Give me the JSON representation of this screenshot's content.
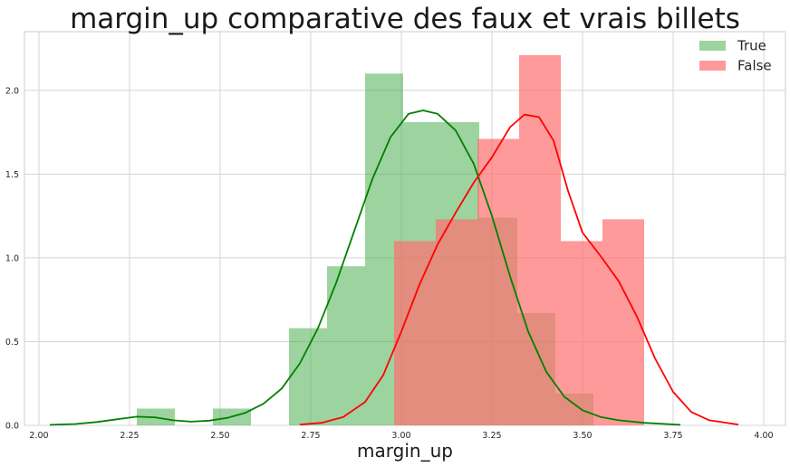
{
  "chart_data": {
    "type": "histogram",
    "title": "margin_up comparative des faux et vrais billets",
    "xlabel": "margin_up",
    "ylabel": "",
    "xlim": [
      1.96,
      4.06
    ],
    "ylim": [
      0,
      2.35
    ],
    "xticks": [
      "2.00",
      "2.25",
      "2.50",
      "2.75",
      "3.00",
      "3.25",
      "3.50",
      "3.75",
      "4.00"
    ],
    "yticks": [
      "0.0",
      "0.5",
      "1.0",
      "1.5",
      "2.0"
    ],
    "grid": true,
    "legend_position": "top-right",
    "series": [
      {
        "name": "True",
        "bar_color": "#4caf50",
        "bar_opacity": 0.55,
        "line_color": "#008000",
        "bins": [
          {
            "x0": 2.27,
            "x1": 2.375,
            "value": 0.1
          },
          {
            "x0": 2.48,
            "x1": 2.585,
            "value": 0.1
          },
          {
            "x0": 2.69,
            "x1": 2.795,
            "value": 0.58
          },
          {
            "x0": 2.795,
            "x1": 2.9,
            "value": 0.95
          },
          {
            "x0": 2.9,
            "x1": 3.005,
            "value": 2.1
          },
          {
            "x0": 3.005,
            "x1": 3.11,
            "value": 1.81
          },
          {
            "x0": 3.11,
            "x1": 3.215,
            "value": 1.81
          },
          {
            "x0": 3.215,
            "x1": 3.32,
            "value": 1.24
          },
          {
            "x0": 3.32,
            "x1": 3.425,
            "value": 0.67
          },
          {
            "x0": 3.425,
            "x1": 3.53,
            "value": 0.19
          }
        ],
        "kde": [
          [
            2.03,
            0.003
          ],
          [
            2.1,
            0.008
          ],
          [
            2.16,
            0.02
          ],
          [
            2.22,
            0.038
          ],
          [
            2.27,
            0.052
          ],
          [
            2.32,
            0.048
          ],
          [
            2.37,
            0.03
          ],
          [
            2.42,
            0.022
          ],
          [
            2.47,
            0.028
          ],
          [
            2.52,
            0.045
          ],
          [
            2.57,
            0.075
          ],
          [
            2.62,
            0.13
          ],
          [
            2.67,
            0.22
          ],
          [
            2.72,
            0.37
          ],
          [
            2.77,
            0.58
          ],
          [
            2.82,
            0.85
          ],
          [
            2.87,
            1.16
          ],
          [
            2.92,
            1.47
          ],
          [
            2.97,
            1.72
          ],
          [
            3.02,
            1.86
          ],
          [
            3.06,
            1.88
          ],
          [
            3.1,
            1.86
          ],
          [
            3.15,
            1.76
          ],
          [
            3.2,
            1.56
          ],
          [
            3.25,
            1.25
          ],
          [
            3.3,
            0.89
          ],
          [
            3.35,
            0.56
          ],
          [
            3.4,
            0.32
          ],
          [
            3.45,
            0.17
          ],
          [
            3.5,
            0.09
          ],
          [
            3.55,
            0.05
          ],
          [
            3.6,
            0.03
          ],
          [
            3.67,
            0.015
          ],
          [
            3.77,
            0.003
          ]
        ]
      },
      {
        "name": "False",
        "bar_color": "#ff6f6f",
        "bar_opacity": 0.7,
        "line_color": "#ff0000",
        "bins": [
          {
            "x0": 2.98,
            "x1": 3.095,
            "value": 1.1
          },
          {
            "x0": 3.095,
            "x1": 3.21,
            "value": 1.23
          },
          {
            "x0": 3.21,
            "x1": 3.325,
            "value": 1.71
          },
          {
            "x0": 3.325,
            "x1": 3.44,
            "value": 2.21
          },
          {
            "x0": 3.44,
            "x1": 3.555,
            "value": 1.1
          },
          {
            "x0": 3.555,
            "x1": 3.67,
            "value": 1.23
          }
        ],
        "kde": [
          [
            2.72,
            0.005
          ],
          [
            2.78,
            0.015
          ],
          [
            2.84,
            0.05
          ],
          [
            2.9,
            0.14
          ],
          [
            2.95,
            0.3
          ],
          [
            3.0,
            0.56
          ],
          [
            3.05,
            0.84
          ],
          [
            3.1,
            1.08
          ],
          [
            3.15,
            1.27
          ],
          [
            3.2,
            1.45
          ],
          [
            3.25,
            1.6
          ],
          [
            3.3,
            1.78
          ],
          [
            3.34,
            1.855
          ],
          [
            3.38,
            1.84
          ],
          [
            3.42,
            1.7
          ],
          [
            3.46,
            1.4
          ],
          [
            3.5,
            1.15
          ],
          [
            3.55,
            1.01
          ],
          [
            3.6,
            0.86
          ],
          [
            3.65,
            0.65
          ],
          [
            3.7,
            0.4
          ],
          [
            3.75,
            0.2
          ],
          [
            3.8,
            0.08
          ],
          [
            3.85,
            0.03
          ],
          [
            3.93,
            0.005
          ]
        ]
      }
    ]
  }
}
